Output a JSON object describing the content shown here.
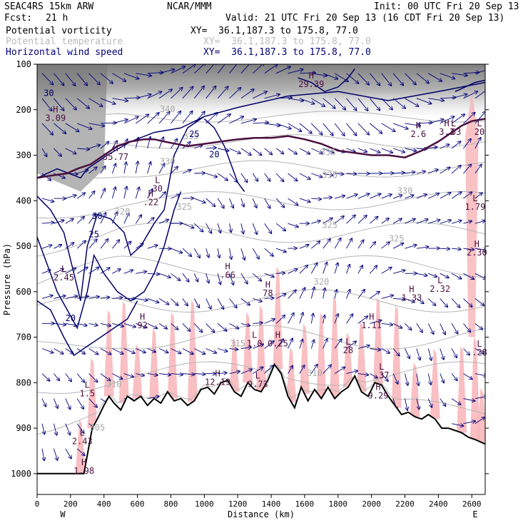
{
  "header": {
    "model": "SEAC4RS 15km ARW",
    "center": "NCAR/MMM",
    "init": "Init: 00 UTC Fri 20 Sep 13",
    "fcst_label": "Fcst:",
    "fcst_value": "21 h",
    "valid": "Valid: 21 UTC Fri 20 Sep 13 (16 CDT Fri 20 Sep 13)"
  },
  "fields": [
    {
      "name": "Potential vorticity",
      "xy": "XY=  36.1,187.3 to 175.8, 77.0",
      "color": "#000000"
    },
    {
      "name": "Potential temperature",
      "xy": "XY=  36.1,187.3 to 175.8, 77.0",
      "color": "#bbbbbb"
    },
    {
      "name": "Horizontal wind speed",
      "xy": "XY=  36.1,187.3 to 175.8, 77.0",
      "color": "#00007a"
    }
  ],
  "chart_data": {
    "type": "cross-section",
    "xlabel": "Distance (km)",
    "ylabel": "Pressure (hPa)",
    "xlim": [
      0,
      2680
    ],
    "ylim": [
      1050,
      100
    ],
    "x_ticks": [
      0,
      200,
      400,
      600,
      800,
      1000,
      1200,
      1400,
      1600,
      1800,
      2000,
      2200,
      2400,
      2600
    ],
    "y_ticks": [
      100,
      200,
      300,
      400,
      500,
      600,
      700,
      800,
      900,
      1000
    ],
    "x_end_labels": {
      "left": "W",
      "right": "E"
    },
    "terrain": [
      [
        0,
        1000
      ],
      [
        90,
        1000
      ],
      [
        200,
        1000
      ],
      [
        280,
        1000
      ],
      [
        330,
        900
      ],
      [
        360,
        880
      ],
      [
        400,
        850
      ],
      [
        430,
        830
      ],
      [
        460,
        845
      ],
      [
        500,
        860
      ],
      [
        540,
        830
      ],
      [
        580,
        840
      ],
      [
        620,
        830
      ],
      [
        660,
        850
      ],
      [
        700,
        835
      ],
      [
        740,
        845
      ],
      [
        780,
        820
      ],
      [
        820,
        840
      ],
      [
        860,
        835
      ],
      [
        900,
        850
      ],
      [
        940,
        840
      ],
      [
        980,
        815
      ],
      [
        1020,
        810
      ],
      [
        1060,
        825
      ],
      [
        1100,
        800
      ],
      [
        1140,
        795
      ],
      [
        1180,
        820
      ],
      [
        1220,
        830
      ],
      [
        1260,
        800
      ],
      [
        1300,
        815
      ],
      [
        1340,
        820
      ],
      [
        1380,
        795
      ],
      [
        1420,
        760
      ],
      [
        1460,
        780
      ],
      [
        1500,
        830
      ],
      [
        1540,
        855
      ],
      [
        1580,
        810
      ],
      [
        1620,
        840
      ],
      [
        1660,
        815
      ],
      [
        1700,
        835
      ],
      [
        1740,
        810
      ],
      [
        1780,
        835
      ],
      [
        1820,
        820
      ],
      [
        1860,
        810
      ],
      [
        1900,
        785
      ],
      [
        1940,
        820
      ],
      [
        1980,
        830
      ],
      [
        2020,
        800
      ],
      [
        2060,
        805
      ],
      [
        2100,
        830
      ],
      [
        2140,
        850
      ],
      [
        2180,
        870
      ],
      [
        2220,
        865
      ],
      [
        2260,
        875
      ],
      [
        2300,
        880
      ],
      [
        2340,
        870
      ],
      [
        2380,
        880
      ],
      [
        2420,
        900
      ],
      [
        2460,
        900
      ],
      [
        2500,
        905
      ],
      [
        2540,
        910
      ],
      [
        2580,
        920
      ],
      [
        2620,
        925
      ],
      [
        2680,
        935
      ]
    ],
    "theta_labels": [
      {
        "x": 780,
        "p": 205,
        "text": "340"
      },
      {
        "x": 920,
        "p": 265,
        "text": "335"
      },
      {
        "x": 780,
        "p": 320,
        "text": "330"
      },
      {
        "x": 1740,
        "p": 300,
        "text": "335"
      },
      {
        "x": 1750,
        "p": 350,
        "text": "330"
      },
      {
        "x": 2200,
        "p": 385,
        "text": "330"
      },
      {
        "x": 880,
        "p": 420,
        "text": "325"
      },
      {
        "x": 1750,
        "p": 460,
        "text": "325"
      },
      {
        "x": 2150,
        "p": 490,
        "text": "325"
      },
      {
        "x": 510,
        "p": 430,
        "text": "320"
      },
      {
        "x": 1700,
        "p": 585,
        "text": "320"
      },
      {
        "x": 1200,
        "p": 720,
        "text": "315"
      },
      {
        "x": 460,
        "p": 810,
        "text": "310"
      },
      {
        "x": 1660,
        "p": 785,
        "text": "310"
      },
      {
        "x": 360,
        "p": 905,
        "text": "305"
      }
    ],
    "speed_labels": [
      {
        "x": 70,
        "p": 170,
        "text": "30"
      },
      {
        "x": 940,
        "p": 260,
        "text": "25"
      },
      {
        "x": 1060,
        "p": 305,
        "text": "20"
      },
      {
        "x": 360,
        "p": 440,
        "text": "30"
      },
      {
        "x": 340,
        "p": 480,
        "text": "25"
      },
      {
        "x": 200,
        "p": 665,
        "text": "20"
      }
    ],
    "extrema": [
      {
        "x": 1640,
        "p": 150,
        "kind": "H",
        "value": "29.39"
      },
      {
        "x": 110,
        "p": 225,
        "kind": "H",
        "value": "3.09"
      },
      {
        "x": 470,
        "p": 310,
        "kind": "H",
        "value": "35.77"
      },
      {
        "x": 680,
        "p": 410,
        "kind": "H",
        "value": ".22"
      },
      {
        "x": 720,
        "p": 380,
        "kind": "L",
        "value": "30"
      },
      {
        "x": 1140,
        "p": 570,
        "kind": "H",
        "value": ".66"
      },
      {
        "x": 1380,
        "p": 610,
        "kind": "H",
        "value": "78"
      },
      {
        "x": 160,
        "p": 575,
        "kind": "L",
        "value": "2.45"
      },
      {
        "x": 630,
        "p": 680,
        "kind": "H",
        "value": "92"
      },
      {
        "x": 1300,
        "p": 720,
        "kind": "L",
        "value": "1.0"
      },
      {
        "x": 1440,
        "p": 720,
        "kind": "H",
        "value": "0.25"
      },
      {
        "x": 1860,
        "p": 735,
        "kind": "L",
        "value": "28"
      },
      {
        "x": 2000,
        "p": 680,
        "kind": "H",
        "value": "1.11"
      },
      {
        "x": 2240,
        "p": 620,
        "kind": "H",
        "value": "1.33"
      },
      {
        "x": 2410,
        "p": 600,
        "kind": "L",
        "value": "2.32"
      },
      {
        "x": 1080,
        "p": 805,
        "kind": "H",
        "value": "12.19"
      },
      {
        "x": 1320,
        "p": 810,
        "kind": "L",
        "value": "9.73"
      },
      {
        "x": 2060,
        "p": 790,
        "kind": "L",
        "value": ".37"
      },
      {
        "x": 2040,
        "p": 835,
        "kind": "H",
        "value": "9.29"
      },
      {
        "x": 2280,
        "p": 260,
        "kind": "H",
        "value": "2.6"
      },
      {
        "x": 2450,
        "p": 255,
        "kind": "H",
        "value": "3.3"
      },
      {
        "x": 2490,
        "p": 255,
        "kind": "L",
        "value": ".83"
      },
      {
        "x": 2680,
        "p": 255,
        "kind": "L",
        "value": "20"
      },
      {
        "x": 2620,
        "p": 420,
        "kind": "L",
        "value": "1.79"
      },
      {
        "x": 2630,
        "p": 520,
        "kind": "H",
        "value": "2.30"
      },
      {
        "x": 2650,
        "p": 740,
        "kind": "L",
        "value": ".28"
      },
      {
        "x": 300,
        "p": 830,
        "kind": "L",
        "value": "1.5"
      },
      {
        "x": 270,
        "p": 935,
        "kind": "L",
        "value": "2.43"
      },
      {
        "x": 280,
        "p": 1000,
        "kind": "H",
        "value": "1.98"
      }
    ]
  }
}
